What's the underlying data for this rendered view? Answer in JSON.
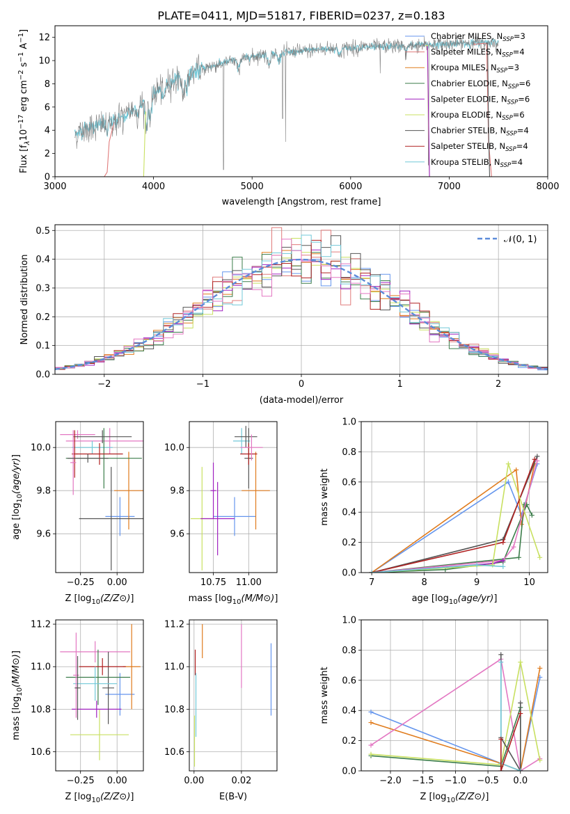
{
  "chart_data": [
    {
      "id": "spectrum",
      "type": "line",
      "title": "PLATE=0411, MJD=51817, FIBERID=0237, z=0.183",
      "xlabel": "wavelength [Angstrom, rest frame]",
      "ylabel_parts": [
        "Flux [f",
        "λ",
        "10",
        "−17",
        " erg cm",
        "−2",
        " s",
        "−1",
        " A",
        "−1",
        "]"
      ],
      "xlim": [
        3000,
        8000
      ],
      "ylim": [
        0,
        13
      ],
      "xticks": [
        "3000",
        "4000",
        "5000",
        "6000",
        "7000",
        "8000"
      ],
      "yticks": [
        "0",
        "2",
        "4",
        "6",
        "8",
        "10",
        "12"
      ],
      "grid": false,
      "legend_position": "top-right",
      "continuum": {
        "x": [
          3200,
          3300,
          3500,
          3700,
          3850,
          4000,
          4200,
          4500,
          4800,
          5100,
          5400,
          5700,
          6000,
          6300,
          6600,
          6900,
          7200,
          7500
        ],
        "y": [
          3.6,
          4.1,
          4.6,
          5.4,
          6.0,
          7.2,
          8.3,
          9.3,
          10.0,
          10.5,
          10.7,
          11.0,
          11.1,
          11.2,
          11.3,
          11.4,
          11.5,
          11.6
        ]
      },
      "features": [
        {
          "x": 3530,
          "depth": 0.9
        },
        {
          "x": 3580,
          "depth": 0.4
        },
        {
          "x": 3620,
          "depth": 0.4
        },
        {
          "x": 3700,
          "depth": 0.5
        },
        {
          "x": 3840,
          "depth": 0.5
        },
        {
          "x": 3930,
          "depth": 2.3
        },
        {
          "x": 3970,
          "depth": 2.0
        },
        {
          "x": 4100,
          "depth": 1.1
        },
        {
          "x": 4300,
          "depth": 1.6
        },
        {
          "x": 4340,
          "depth": 1.0
        },
        {
          "x": 4860,
          "depth": 0.9
        },
        {
          "x": 5170,
          "depth": 0.9
        },
        {
          "x": 5270,
          "depth": 0.6
        },
        {
          "x": 5890,
          "depth": 0.7
        },
        {
          "x": 6560,
          "depth": 0.6
        }
      ],
      "spikes": [
        {
          "x": 4710,
          "y": 0.6
        },
        {
          "x": 5310,
          "y": 5.0
        },
        {
          "x": 5340,
          "y": 3.0
        },
        {
          "x": 6300,
          "y": 8.9
        },
        {
          "x": 6790,
          "y": 1.0
        }
      ],
      "model_fragments": [
        {
          "series": 1,
          "x": [
            3500,
            3530,
            3550,
            3600
          ],
          "y": [
            0,
            0.4,
            3.0,
            4.7
          ]
        },
        {
          "series": 1,
          "x": [
            7250,
            7380,
            7400,
            7430
          ],
          "y": [
            11.4,
            11.5,
            3.0,
            0
          ]
        },
        {
          "series": 5,
          "x": [
            3900,
            3910,
            3920
          ],
          "y": [
            0,
            3.0,
            5.6
          ]
        },
        {
          "series": 5,
          "x": [
            6760,
            6780,
            6790,
            6800
          ],
          "y": [
            11.3,
            11.3,
            4.0,
            0
          ]
        },
        {
          "series": 4,
          "x": [
            6770,
            6780,
            6800
          ],
          "y": [
            11.2,
            11.2,
            0
          ]
        },
        {
          "series": 6,
          "x": [
            7370,
            7390,
            7400,
            7410
          ],
          "y": [
            11.5,
            11.5,
            4.0,
            0
          ]
        }
      ],
      "series": [
        {
          "name": "Chabrier MILES, N",
          "sub": "SSP",
          "suffix": "=3",
          "color": "#6495ed"
        },
        {
          "name": "Salpeter MILES, N",
          "sub": "SSP",
          "suffix": "=4",
          "color": "#e07b7b"
        },
        {
          "name": "Kroupa MILES, N",
          "sub": "SSP",
          "suffix": "=3",
          "color": "#e07b1c"
        },
        {
          "name": "Chabrier ELODIE, N",
          "sub": "SSP",
          "suffix": "=6",
          "color": "#3b7d4a"
        },
        {
          "name": "Salpeter ELODIE, N",
          "sub": "SSP",
          "suffix": "=6",
          "color": "#a020c0"
        },
        {
          "name": "Kroupa ELODIE, N",
          "sub": "SSP",
          "suffix": "=6",
          "color": "#c8e060"
        },
        {
          "name": "Chabrier STELIB, N",
          "sub": "SSP",
          "suffix": "=4",
          "color": "#555555"
        },
        {
          "name": "Salpeter STELIB, N",
          "sub": "SSP",
          "suffix": "=4",
          "color": "#b02020"
        },
        {
          "name": "Kroupa STELIB, N",
          "sub": "SSP",
          "suffix": "=4",
          "color": "#70c8d8"
        }
      ],
      "data_color": "#808080",
      "model_color": "#70c8d8"
    },
    {
      "id": "residuals",
      "type": "step",
      "xlabel": "(data-model)/error",
      "ylabel": "Normed distribution",
      "xlim": [
        -2.5,
        2.5
      ],
      "ylim": [
        0,
        0.52
      ],
      "xticks": [
        "−2",
        "−1",
        "0",
        "1",
        "2"
      ],
      "xtick_values": [
        -2,
        -1,
        0,
        1,
        2
      ],
      "yticks": [
        "0.0",
        "0.1",
        "0.2",
        "0.3",
        "0.4",
        "0.5"
      ],
      "ytick_values": [
        0,
        0.1,
        0.2,
        0.3,
        0.4,
        0.5
      ],
      "grid": true,
      "legend_position": "top-right",
      "legend": "𝒩(0, 1)",
      "gaussian": {
        "mean": 0,
        "sigma": 1,
        "color": "#5b8bd9"
      },
      "bin_width": 0.1,
      "colors": [
        "#6495ed",
        "#e07b7b",
        "#e07b1c",
        "#3b7d4a",
        "#a020c0",
        "#c8e060",
        "#555555",
        "#b02020",
        "#70c8d8",
        "#e377c2"
      ]
    },
    {
      "id": "age_vs_Z",
      "type": "errorbar",
      "xlabel": "Z [log10(Z/Z⊙)]",
      "ylabel": "age  [log10(age/yr)]",
      "xlim": [
        -0.42,
        0.18
      ],
      "ylim": [
        9.42,
        10.12
      ],
      "xticks": [
        "−0.25",
        "0.00"
      ],
      "xtick_values": [
        -0.25,
        0.0
      ],
      "yticks": [
        "9.6",
        "9.8",
        "10.0"
      ],
      "ytick_values": [
        9.6,
        9.8,
        10.0
      ],
      "grid": true,
      "points": [
        {
          "x": 0.02,
          "y": 9.68,
          "xerr": 0.1,
          "yerr": 0.09,
          "color": "#6495ed"
        },
        {
          "x": 0.08,
          "y": 9.8,
          "xerr": 0.1,
          "yerr": 0.18,
          "color": "#e07b1c"
        },
        {
          "x": -0.04,
          "y": 9.67,
          "xerr": 0.22,
          "yerr": 0.24,
          "color": "#555555"
        },
        {
          "x": -0.27,
          "y": 10.06,
          "xerr": 0.12,
          "yerr": 0.02,
          "color": "#e377c2"
        },
        {
          "x": -0.05,
          "y": 10.03,
          "xerr": 0.3,
          "yerr": 0.06,
          "color": "#e377c2"
        },
        {
          "x": -0.17,
          "y": 10.0,
          "xerr": 0.14,
          "yerr": 0.03,
          "color": "#70c8d8"
        },
        {
          "x": -0.09,
          "y": 9.95,
          "xerr": 0.26,
          "yerr": 0.14,
          "color": "#3b7d4a"
        },
        {
          "x": -0.1,
          "y": 10.05,
          "xerr": 0.2,
          "yerr": 0.03,
          "color": "#555555"
        },
        {
          "x": -0.12,
          "y": 9.97,
          "xerr": 0.16,
          "yerr": 0.05,
          "color": "#b02020"
        },
        {
          "x": -0.29,
          "y": 9.97,
          "xerr": 0.02,
          "yerr": 0.11,
          "color": "#b02020"
        },
        {
          "x": -0.3,
          "y": 9.93,
          "xerr": 0.02,
          "yerr": 0.15,
          "color": "#e377c2"
        },
        {
          "x": -0.2,
          "y": 9.95,
          "xerr": 0.14,
          "yerr": 0.02,
          "color": "#555555"
        }
      ]
    },
    {
      "id": "age_vs_mass",
      "type": "errorbar",
      "xlabel": "mass [log10(M/M⊙)]",
      "xlim": [
        10.58,
        11.2
      ],
      "ylim": [
        9.42,
        10.12
      ],
      "xticks": [
        "10.75",
        "11.00"
      ],
      "xtick_values": [
        10.75,
        11.0
      ],
      "yticks": [
        "9.6",
        "9.8",
        "10.0"
      ],
      "ytick_values": [
        9.6,
        9.8,
        10.0
      ],
      "grid": true,
      "points": [
        {
          "x": 10.9,
          "y": 9.68,
          "xerr": 0.15,
          "yerr": 0.09,
          "color": "#6495ed"
        },
        {
          "x": 11.05,
          "y": 9.8,
          "xerr": 0.1,
          "yerr": 0.18,
          "color": "#e07b1c"
        },
        {
          "x": 10.67,
          "y": 9.67,
          "xerr": 0.08,
          "yerr": 0.24,
          "color": "#c8e060"
        },
        {
          "x": 10.78,
          "y": 9.67,
          "xerr": 0.12,
          "yerr": 0.17,
          "color": "#a020c0"
        },
        {
          "x": 10.95,
          "y": 10.03,
          "xerr": 0.06,
          "yerr": 0.06,
          "color": "#70c8d8"
        },
        {
          "x": 11.0,
          "y": 9.95,
          "xerr": 0.03,
          "yerr": 0.14,
          "color": "#555555"
        },
        {
          "x": 10.98,
          "y": 10.05,
          "xerr": 0.08,
          "yerr": 0.05,
          "color": "#555555"
        },
        {
          "x": 11.0,
          "y": 9.97,
          "xerr": 0.06,
          "yerr": 0.05,
          "color": "#b02020"
        },
        {
          "x": 11.02,
          "y": 10.0,
          "xerr": 0.08,
          "yerr": 0.06,
          "color": "#e377c2"
        },
        {
          "x": 10.75,
          "y": 9.8,
          "xerr": 0.02,
          "yerr": 0.13,
          "color": "#a020c0"
        }
      ]
    },
    {
      "id": "weight_vs_age",
      "type": "line",
      "xlabel": "age  [log10(age/yr)]",
      "ylabel": "mass weight",
      "xlim": [
        6.8,
        10.35
      ],
      "ylim": [
        0,
        1.0
      ],
      "xticks": [
        "7",
        "8",
        "9",
        "10"
      ],
      "xtick_values": [
        7,
        8,
        9,
        10
      ],
      "yticks": [
        "0.0",
        "0.2",
        "0.4",
        "0.6",
        "0.8",
        "1.0"
      ],
      "ytick_values": [
        0,
        0.2,
        0.4,
        0.6,
        0.8,
        1.0
      ],
      "grid": true,
      "series": [
        {
          "color": "#6495ed",
          "x": [
            7.0,
            9.6,
            9.85,
            10.15
          ],
          "y": [
            0.0,
            0.6,
            0.38,
            0.72
          ]
        },
        {
          "color": "#e07b1c",
          "x": [
            7.0,
            9.75,
            9.85,
            10.1
          ],
          "y": [
            0.0,
            0.68,
            0.32,
            0.72
          ]
        },
        {
          "color": "#555555",
          "x": [
            7.0,
            9.5,
            10.15
          ],
          "y": [
            0.0,
            0.22,
            0.77
          ]
        },
        {
          "color": "#b02020",
          "x": [
            7.0,
            9.5,
            10.1
          ],
          "y": [
            0.0,
            0.2,
            0.75
          ]
        },
        {
          "color": "#3b7d4a",
          "x": [
            7.0,
            8.4,
            9.5,
            9.95,
            10.05
          ],
          "y": [
            0.0,
            0.02,
            0.07,
            0.45,
            0.38
          ]
        },
        {
          "color": "#3b7d4a",
          "x": [
            7.0,
            9.8,
            9.9
          ],
          "y": [
            0.0,
            0.1,
            0.45
          ]
        },
        {
          "color": "#e377c2",
          "x": [
            7.0,
            9.5,
            9.7,
            10.15
          ],
          "y": [
            0.0,
            0.08,
            0.17,
            0.74
          ]
        },
        {
          "color": "#a020c0",
          "x": [
            7.0,
            9.3,
            9.5
          ],
          "y": [
            0.0,
            0.06,
            0.08
          ]
        },
        {
          "color": "#c8e060",
          "x": [
            7.0,
            9.3,
            9.6,
            10.2
          ],
          "y": [
            0.0,
            0.05,
            0.72,
            0.1
          ]
        },
        {
          "color": "#70c8d8",
          "x": [
            7.0,
            9.0,
            9.5
          ],
          "y": [
            0.0,
            0.05,
            0.04
          ]
        }
      ]
    },
    {
      "id": "mass_vs_Z",
      "type": "errorbar",
      "xlabel": "Z [log10(Z/Z⊙)]",
      "ylabel": "mass [log10(M/M⊙)]",
      "xlim": [
        -0.42,
        0.18
      ],
      "ylim": [
        10.51,
        11.22
      ],
      "xticks": [
        "−0.25",
        "0.00"
      ],
      "xtick_values": [
        -0.25,
        0.0
      ],
      "yticks": [
        "10.6",
        "10.8",
        "11.0",
        "11.2"
      ],
      "ytick_values": [
        10.6,
        10.8,
        11.0,
        11.2
      ],
      "grid": true,
      "points": [
        {
          "x": 0.02,
          "y": 10.87,
          "xerr": 0.1,
          "yerr": 0.1,
          "color": "#6495ed"
        },
        {
          "x": 0.1,
          "y": 11.0,
          "xerr": 0.06,
          "yerr": 0.2,
          "color": "#e07b1c"
        },
        {
          "x": -0.12,
          "y": 10.68,
          "xerr": 0.2,
          "yerr": 0.12,
          "color": "#c8e060"
        },
        {
          "x": -0.14,
          "y": 10.8,
          "xerr": 0.17,
          "yerr": 0.04,
          "color": "#a020c0"
        },
        {
          "x": -0.15,
          "y": 11.07,
          "xerr": 0.24,
          "yerr": 0.05,
          "color": "#e377c2"
        },
        {
          "x": -0.13,
          "y": 10.95,
          "xerr": 0.22,
          "yerr": 0.13,
          "color": "#3b7d4a"
        },
        {
          "x": -0.06,
          "y": 10.9,
          "xerr": 0.04,
          "yerr": 0.17,
          "color": "#555555"
        },
        {
          "x": -0.1,
          "y": 11.0,
          "xerr": 0.16,
          "yerr": 0.04,
          "color": "#b02020"
        },
        {
          "x": -0.15,
          "y": 10.92,
          "xerr": 0.15,
          "yerr": 0.08,
          "color": "#70c8d8"
        },
        {
          "x": -0.28,
          "y": 10.96,
          "xerr": 0.02,
          "yerr": 0.2,
          "color": "#e377c2"
        },
        {
          "x": -0.27,
          "y": 10.9,
          "xerr": 0.02,
          "yerr": 0.15,
          "color": "#555555"
        }
      ]
    },
    {
      "id": "mass_vs_ebv",
      "type": "errorbar",
      "xlabel": "E(B-V)",
      "xlim": [
        -0.002,
        0.035
      ],
      "ylim": [
        10.51,
        11.22
      ],
      "xticks": [
        "0.00",
        "0.02"
      ],
      "xtick_values": [
        0.0,
        0.02
      ],
      "yticks": [
        "10.6",
        "10.8",
        "11.0",
        "11.2"
      ],
      "ytick_values": [
        10.6,
        10.8,
        11.0,
        11.2
      ],
      "grid": true,
      "points": [
        {
          "x": 0.0002,
          "y": 10.65,
          "xerr": 0,
          "yerr": 0.12,
          "color": "#c8e060"
        },
        {
          "x": 0.0005,
          "y": 11.02,
          "xerr": 0,
          "yerr": 0.06,
          "color": "#b02020"
        },
        {
          "x": 0.0008,
          "y": 10.82,
          "xerr": 0,
          "yerr": 0.15,
          "color": "#70c8d8"
        },
        {
          "x": 0.0035,
          "y": 11.12,
          "xerr": 0,
          "yerr": 0.08,
          "color": "#e07b1c"
        },
        {
          "x": 0.02,
          "y": 11.05,
          "xerr": 0,
          "yerr": 0.15,
          "color": "#e377c2"
        },
        {
          "x": 0.0325,
          "y": 10.94,
          "xerr": 0,
          "yerr": 0.17,
          "color": "#6495ed"
        }
      ]
    },
    {
      "id": "weight_vs_Z",
      "type": "line",
      "xlabel": "Z [log10(Z/Z⊙)]",
      "ylabel": "mass weight",
      "xlim": [
        -2.45,
        0.42
      ],
      "ylim": [
        0,
        1.0
      ],
      "xticks": [
        "−2.0",
        "−1.5",
        "−1.0",
        "−0.5",
        "0.0"
      ],
      "xtick_values": [
        -2.0,
        -1.5,
        -1.0,
        -0.5,
        0.0
      ],
      "yticks": [
        "0.0",
        "0.2",
        "0.4",
        "0.6",
        "0.8",
        "1.0"
      ],
      "ytick_values": [
        0,
        0.2,
        0.4,
        0.6,
        0.8,
        1.0
      ],
      "grid": true,
      "series": [
        {
          "color": "#6495ed",
          "x": [
            -2.3,
            -0.3,
            0.0,
            0.3
          ],
          "y": [
            0.39,
            0.05,
            0.0,
            0.62
          ]
        },
        {
          "color": "#e07b1c",
          "x": [
            -2.3,
            -0.3,
            0.0,
            0.3
          ],
          "y": [
            0.32,
            0.05,
            0.0,
            0.68
          ]
        },
        {
          "color": "#e377c2",
          "x": [
            -2.3,
            -0.3,
            0.0,
            0.3
          ],
          "y": [
            0.17,
            0.74,
            0.0,
            0.08
          ]
        },
        {
          "color": "#3b7d4a",
          "x": [
            -2.3,
            -0.3,
            0.0,
            0.0
          ],
          "y": [
            0.1,
            0.03,
            0.42,
            0.0
          ]
        },
        {
          "color": "#c8e060",
          "x": [
            -2.3,
            -0.3,
            0.0,
            0.3
          ],
          "y": [
            0.11,
            0.04,
            0.72,
            0.07
          ]
        },
        {
          "color": "#555555",
          "x": [
            -0.3,
            -0.3,
            0.0,
            0.0
          ],
          "y": [
            0.77,
            0.22,
            0.0,
            0.45
          ]
        },
        {
          "color": "#70c8d8",
          "x": [
            -0.3,
            -0.3,
            0.0
          ],
          "y": [
            0.72,
            0.05,
            0.0
          ]
        },
        {
          "color": "#b02020",
          "x": [
            -0.3,
            -0.3,
            0.0
          ],
          "y": [
            0.21,
            0.0,
            0.38
          ]
        }
      ]
    }
  ]
}
